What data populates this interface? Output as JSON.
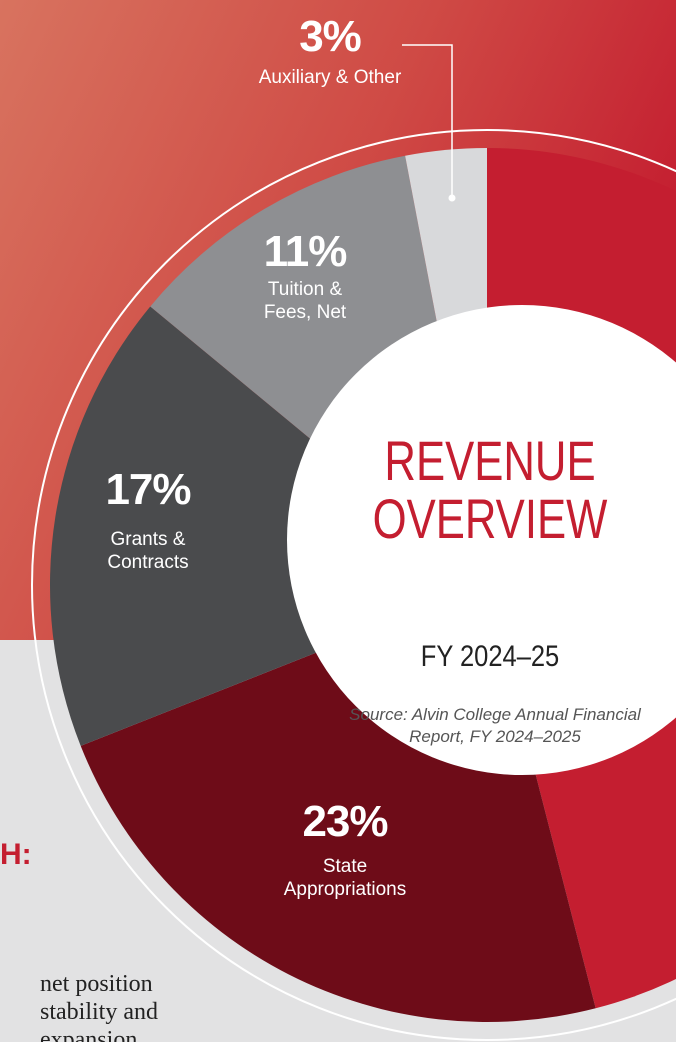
{
  "chart_data": {
    "type": "donut",
    "title": "REVENUE OVERVIEW",
    "subtitle": "FY 2024–25",
    "source": "Source: Alvin College Annual Financial Report, FY 2024–2025",
    "categories": [
      null,
      "State Appropriations",
      "Grants & Contracts",
      "Tuition & Fees, Net",
      "Auxiliary & Other"
    ],
    "values": [
      46,
      23,
      17,
      11,
      3
    ],
    "value_labels": [
      null,
      "23%",
      "17%",
      "11%",
      "3%"
    ],
    "colors": [
      "#c41e30",
      "#6e0c18",
      "#4a4b4d",
      "#8e8f92",
      "#d8d9db"
    ]
  },
  "page_text": {
    "heading_fragment": "H:",
    "body_lines": [
      "net position",
      "stability and",
      "expansion"
    ]
  }
}
